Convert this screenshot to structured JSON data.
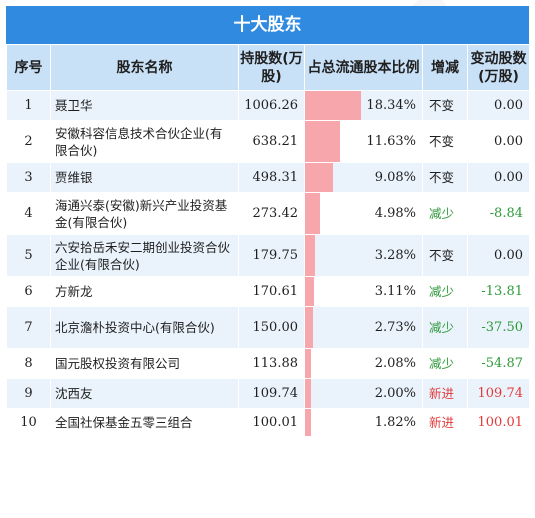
{
  "title": "十大股东",
  "headers": {
    "index": "序号",
    "name": "股东名称",
    "shares": "持股数(万股)",
    "ratio": "占总流通股本比例",
    "change": "增减",
    "delta": "变动股数(万股)"
  },
  "colors": {
    "bar": "#f7a7ab",
    "header_bg": "#c9e1f7",
    "title_bg": "#2f8ae0",
    "down": "#2e9a3a",
    "new": "#e23b3b"
  },
  "rows": [
    {
      "index": "1",
      "name": "聂卫华",
      "shares": "1006.26",
      "ratio_text": "18.34%",
      "ratio": 18.34,
      "change": "不变",
      "change_type": "same",
      "delta": "0.00"
    },
    {
      "index": "2",
      "name": "安徽科容信息技术合伙企业(有限合伙)",
      "shares": "638.21",
      "ratio_text": "11.63%",
      "ratio": 11.63,
      "change": "不变",
      "change_type": "same",
      "delta": "0.00"
    },
    {
      "index": "3",
      "name": "贾维银",
      "shares": "498.31",
      "ratio_text": "9.08%",
      "ratio": 9.08,
      "change": "不变",
      "change_type": "same",
      "delta": "0.00"
    },
    {
      "index": "4",
      "name": "海通兴泰(安徽)新兴产业投资基金(有限合伙)",
      "shares": "273.42",
      "ratio_text": "4.98%",
      "ratio": 4.98,
      "change": "减少",
      "change_type": "down",
      "delta": "-8.84"
    },
    {
      "index": "5",
      "name": "六安拾岳禾安二期创业投资合伙企业(有限合伙)",
      "shares": "179.75",
      "ratio_text": "3.28%",
      "ratio": 3.28,
      "change": "不变",
      "change_type": "same",
      "delta": "0.00"
    },
    {
      "index": "6",
      "name": "方新龙",
      "shares": "170.61",
      "ratio_text": "3.11%",
      "ratio": 3.11,
      "change": "减少",
      "change_type": "down",
      "delta": "-13.81"
    },
    {
      "index": "7",
      "name": "北京澹朴投资中心(有限合伙)",
      "shares": "150.00",
      "ratio_text": "2.73%",
      "ratio": 2.73,
      "change": "减少",
      "change_type": "down",
      "delta": "-37.50"
    },
    {
      "index": "8",
      "name": "国元股权投资有限公司",
      "shares": "113.88",
      "ratio_text": "2.08%",
      "ratio": 2.08,
      "change": "减少",
      "change_type": "down",
      "delta": "-54.87"
    },
    {
      "index": "9",
      "name": "沈西友",
      "shares": "109.74",
      "ratio_text": "2.00%",
      "ratio": 2.0,
      "change": "新进",
      "change_type": "new",
      "delta": "109.74"
    },
    {
      "index": "10",
      "name": "全国社保基金五零三组合",
      "shares": "100.01",
      "ratio_text": "1.82%",
      "ratio": 1.82,
      "change": "新进",
      "change_type": "new",
      "delta": "100.01"
    }
  ],
  "ratio_scale_max": 38.5
}
